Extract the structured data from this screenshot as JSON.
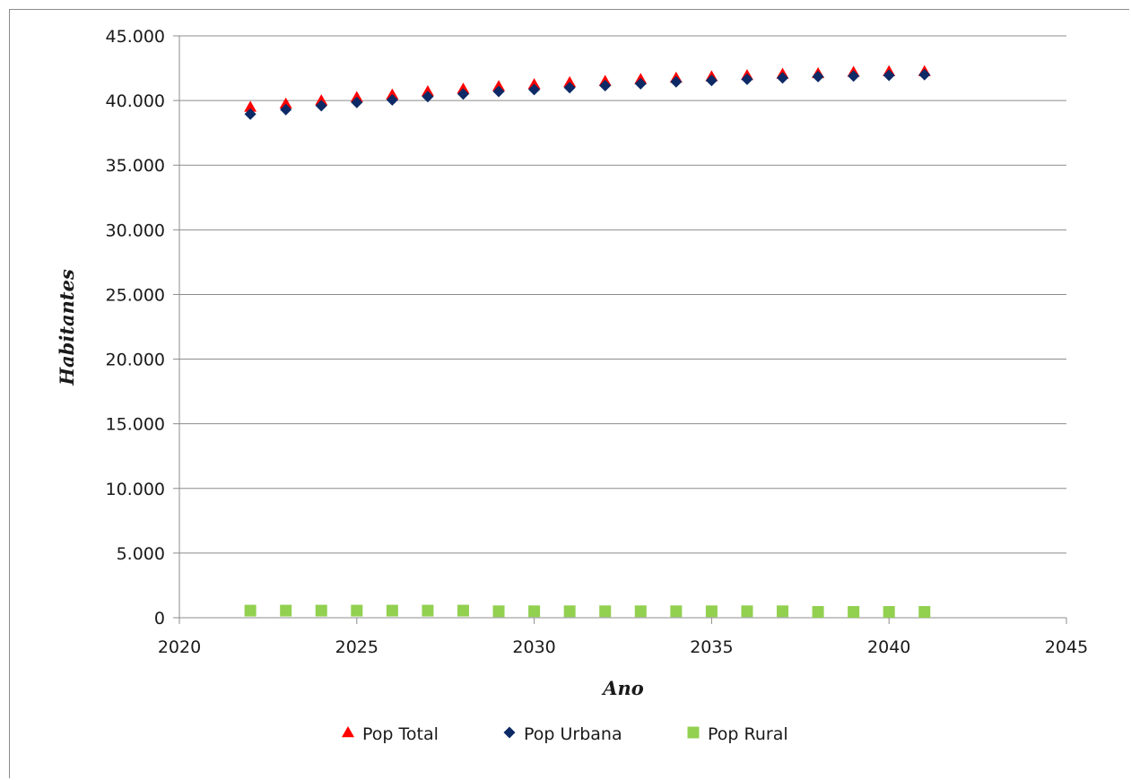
{
  "chart_data": {
    "type": "scatter",
    "title": "",
    "xlabel": "Ano",
    "ylabel": "Habitantes",
    "xlim": [
      2020,
      2045
    ],
    "ylim": [
      0,
      45000
    ],
    "x_ticks": [
      "2020",
      "2025",
      "2030",
      "2035",
      "2040",
      "2045"
    ],
    "y_ticks": [
      "0",
      "5.000",
      "10.000",
      "15.000",
      "20.000",
      "25.000",
      "30.000",
      "35.000",
      "40.000",
      "45.000"
    ],
    "grid": "horizontal",
    "legend_position": "bottom",
    "x": [
      2022,
      2023,
      2024,
      2025,
      2026,
      2027,
      2028,
      2029,
      2030,
      2031,
      2032,
      2033,
      2034,
      2035,
      2036,
      2037,
      2038,
      2039,
      2040,
      2041
    ],
    "series": [
      {
        "name": "Pop Total",
        "marker": "triangle",
        "color": "#ff0000",
        "values": [
          39500,
          39750,
          40000,
          40250,
          40450,
          40700,
          40900,
          41100,
          41250,
          41400,
          41500,
          41650,
          41750,
          41850,
          41950,
          42050,
          42100,
          42200,
          42250,
          42250
        ]
      },
      {
        "name": "Pop Urbana",
        "marker": "diamond",
        "color": "#0d2a66",
        "values": [
          38950,
          39300,
          39600,
          39850,
          40050,
          40300,
          40500,
          40700,
          40850,
          41000,
          41150,
          41300,
          41450,
          41550,
          41650,
          41750,
          41850,
          41900,
          41950,
          42000
        ]
      },
      {
        "name": "Pop Rural",
        "marker": "square",
        "color": "#92d050",
        "values": [
          550,
          550,
          550,
          550,
          550,
          550,
          550,
          500,
          500,
          500,
          500,
          500,
          500,
          500,
          500,
          500,
          450,
          450,
          450,
          450
        ]
      }
    ]
  }
}
